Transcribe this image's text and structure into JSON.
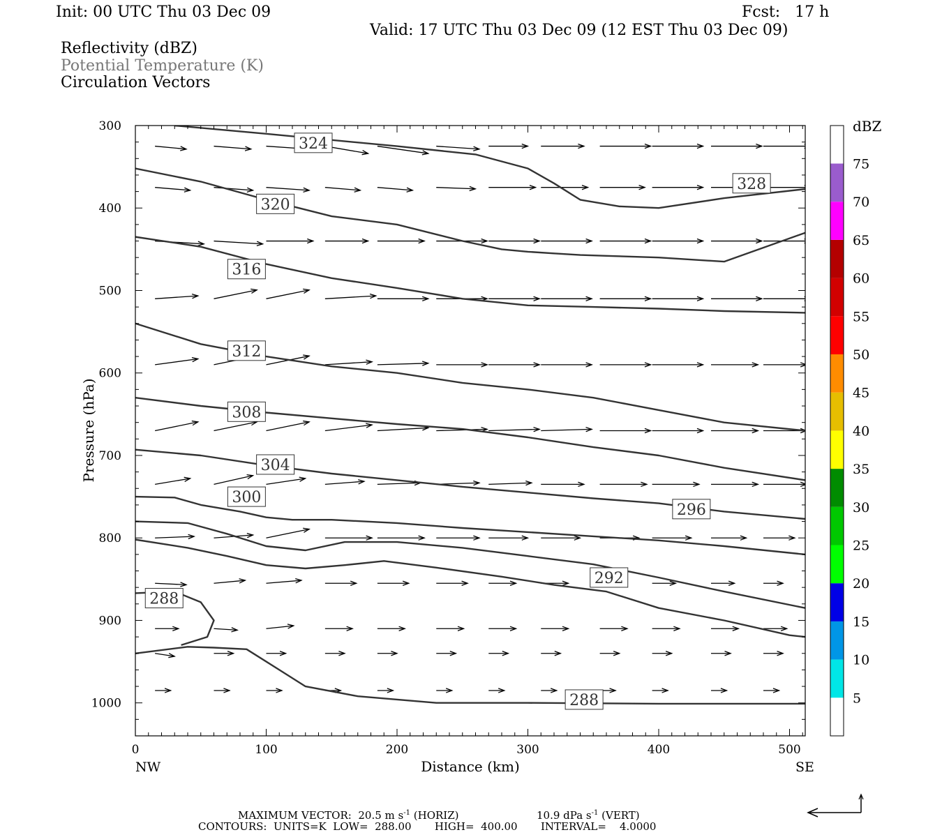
{
  "header": {
    "init": "Init: 00 UTC Thu 03 Dec 09",
    "fcst": "Fcst:   17 h",
    "valid": "Valid: 17 UTC Thu 03 Dec 09 (12 EST Thu 03 Dec 09)"
  },
  "fields": {
    "reflectivity": "Reflectivity (dBZ)",
    "theta": "Potential Temperature (K)",
    "vectors": "Circulation Vectors"
  },
  "footer": {
    "max_vector": "MAXIMUM VECTOR:  20.5 m s",
    "max_vector_units": "(HORIZ)",
    "vert": "10.9 dPa s",
    "vert_units": "(VERT)",
    "exp": "-1",
    "contours": "CONTOURS:  UNITS=K  LOW=  288.00       HIGH=  400.00       INTERVAL=    4.0000"
  },
  "chart_data": {
    "type": "line",
    "xlabel": "Distance (km)",
    "ylabel": "Pressure (hPa)",
    "xlim": [
      0,
      512
    ],
    "ylim": [
      1040,
      300
    ],
    "x_ticks": [
      "0",
      "100",
      "200",
      "300",
      "400",
      "500"
    ],
    "x_end_labels": {
      "left": "NW",
      "right": "SE"
    },
    "y_ticks": [
      "300",
      "400",
      "500",
      "600",
      "700",
      "800",
      "900",
      "1000"
    ],
    "series": [
      {
        "name": "328",
        "x": [
          30,
          100,
          200,
          260,
          300,
          320,
          340,
          370,
          400,
          450,
          512
        ],
        "y": [
          300,
          310,
          325,
          335,
          352,
          370,
          390,
          398,
          400,
          388,
          377
        ],
        "label_at": [
          471,
          370
        ]
      },
      {
        "name": "324",
        "x": [
          0,
          50,
          100,
          150,
          200,
          250,
          280,
          300,
          320,
          340,
          360,
          400,
          450,
          512
        ],
        "y": [
          352,
          368,
          390,
          410,
          420,
          440,
          450,
          453,
          455,
          457,
          458,
          460,
          465,
          430
        ],
        "label_at": [
          136,
          321
        ]
      },
      {
        "name": "320",
        "x": [
          0,
          50,
          100,
          150,
          200,
          250,
          300,
          350,
          400,
          450,
          512
        ],
        "y": [
          435,
          447,
          468,
          485,
          497,
          510,
          518,
          520,
          522,
          525,
          527
        ],
        "label_at": [
          107,
          395
        ]
      },
      {
        "name": "316",
        "x": [
          0,
          50,
          100,
          150,
          200,
          250,
          300,
          350,
          400,
          450,
          512
        ],
        "y": [
          540,
          565,
          580,
          592,
          600,
          612,
          620,
          630,
          645,
          660,
          670
        ],
        "label_at": [
          85,
          474
        ]
      },
      {
        "name": "312",
        "x": [
          0,
          50,
          100,
          150,
          200,
          250,
          300,
          350,
          400,
          450,
          512
        ],
        "y": [
          630,
          640,
          648,
          655,
          662,
          668,
          678,
          690,
          700,
          715,
          730
        ],
        "label_at": [
          85,
          573
        ]
      },
      {
        "name": "308",
        "x": [
          0,
          50,
          100,
          150,
          200,
          250,
          300,
          350,
          400,
          450,
          512
        ],
        "y": [
          693,
          700,
          712,
          722,
          730,
          738,
          745,
          752,
          758,
          768,
          777
        ],
        "label_at": [
          85,
          647
        ]
      },
      {
        "name": "304",
        "x": [
          0,
          30,
          50,
          80,
          100,
          120,
          150,
          200,
          250,
          300,
          350,
          400,
          450,
          512
        ],
        "y": [
          750,
          751,
          760,
          768,
          775,
          778,
          778,
          782,
          788,
          793,
          798,
          803,
          810,
          820
        ],
        "label_at": [
          107,
          711
        ]
      },
      {
        "name": "300",
        "x": [
          0,
          40,
          70,
          100,
          130,
          160,
          200,
          250,
          300,
          350,
          400,
          450,
          512
        ],
        "y": [
          780,
          782,
          795,
          810,
          815,
          805,
          805,
          812,
          822,
          832,
          848,
          865,
          885
        ],
        "label_at": [
          85,
          750
        ]
      },
      {
        "name": "296",
        "x": [
          0,
          40,
          70,
          100,
          130,
          160,
          190,
          230,
          280,
          320,
          360,
          400,
          450,
          500,
          512
        ],
        "y": [
          802,
          812,
          822,
          833,
          837,
          833,
          828,
          836,
          847,
          857,
          865,
          885,
          900,
          918,
          920
        ],
        "label_at": [
          425,
          765
        ]
      },
      {
        "name": "292",
        "x": [
          0,
          30,
          50,
          60,
          55,
          45,
          35
        ],
        "y": [
          867,
          865,
          878,
          900,
          920,
          925,
          930
        ],
        "label_at": [
          362,
          848
        ]
      },
      {
        "name": "288",
        "x": [
          0,
          40,
          60,
          85,
          110,
          130,
          170,
          230,
          300,
          400,
          512
        ],
        "y": [
          940,
          932,
          933,
          935,
          960,
          980,
          992,
          1000,
          1000,
          1001,
          1001
        ],
        "label_at": [
          343,
          996
        ]
      }
    ],
    "label_notes": [
      "288 also labelled near x=22, p=873"
    ],
    "colorbar": {
      "title": "dBZ",
      "levels": [
        "5",
        "10",
        "15",
        "20",
        "25",
        "30",
        "35",
        "40",
        "45",
        "50",
        "55",
        "60",
        "65",
        "70",
        "75"
      ],
      "colors": [
        "#ffffff",
        "#00e6e6",
        "#0096e6",
        "#0000e6",
        "#00ff00",
        "#00c800",
        "#008c00",
        "#ffff00",
        "#e6be00",
        "#ff8c00",
        "#ff0000",
        "#d20000",
        "#b40000",
        "#ff00ff",
        "#9a5ccd",
        "#ffffff"
      ]
    },
    "vectors": {
      "rows_p": [
        325,
        375,
        440,
        510,
        590,
        670,
        735,
        800,
        855,
        910,
        940,
        985
      ],
      "x": [
        15,
        60,
        100,
        145,
        185,
        230,
        270,
        310,
        355,
        395,
        440,
        480
      ],
      "u": [
        [
          1.6,
          1.9,
          2.2,
          2.2,
          2.6,
          2.2,
          2.0,
          2.2,
          2.6,
          2.6,
          2.6,
          2.4
        ],
        [
          1.8,
          2.0,
          2.2,
          1.8,
          1.8,
          2.0,
          2.4,
          2.4,
          2.3,
          2.6,
          2.7,
          2.4
        ],
        [
          2.5,
          2.5,
          2.4,
          2.2,
          2.4,
          2.6,
          2.6,
          2.6,
          2.6,
          2.6,
          2.6,
          2.4
        ],
        [
          2.2,
          2.2,
          2.2,
          2.6,
          2.6,
          2.6,
          2.6,
          2.6,
          2.6,
          2.6,
          2.6,
          2.4
        ],
        [
          2.2,
          2.2,
          2.2,
          2.4,
          2.6,
          2.6,
          2.6,
          2.6,
          2.6,
          2.6,
          2.4,
          2.2
        ],
        [
          2.2,
          2.2,
          2.2,
          2.4,
          2.6,
          2.6,
          2.6,
          2.6,
          2.6,
          2.6,
          2.4,
          2.2
        ],
        [
          1.8,
          2.0,
          2.0,
          2.0,
          2.2,
          2.2,
          2.2,
          2.2,
          2.4,
          2.4,
          2.4,
          2.2
        ],
        [
          2.0,
          2.0,
          2.2,
          2.4,
          2.4,
          2.2,
          2.0,
          2.0,
          2.0,
          2.0,
          1.8,
          1.6
        ],
        [
          1.6,
          1.6,
          1.8,
          1.6,
          1.6,
          1.6,
          1.4,
          1.4,
          1.2,
          1.2,
          1.2,
          1.0
        ],
        [
          1.2,
          1.2,
          1.4,
          1.4,
          1.4,
          1.4,
          1.4,
          1.4,
          1.4,
          1.4,
          1.4,
          1.2
        ],
        [
          1.0,
          1.0,
          1.0,
          1.0,
          1.0,
          1.0,
          1.0,
          1.0,
          1.0,
          1.0,
          1.0,
          1.0
        ],
        [
          0.8,
          0.8,
          0.8,
          0.8,
          0.8,
          0.8,
          0.8,
          0.8,
          0.8,
          0.8,
          0.8,
          0.8
        ]
      ],
      "w": [
        [
          0.1,
          0.1,
          0.1,
          0.25,
          0.25,
          0.1,
          0.0,
          0.0,
          0.0,
          0.0,
          0.0,
          0.0
        ],
        [
          0.1,
          0.1,
          0.1,
          0.1,
          0.1,
          0.05,
          0.0,
          0.0,
          0.0,
          0.0,
          0.0,
          0.0
        ],
        [
          0.1,
          0.1,
          0.0,
          0.0,
          0.0,
          0.0,
          0.0,
          0.0,
          0.0,
          0.0,
          0.0,
          0.0
        ],
        [
          -0.1,
          -0.3,
          -0.3,
          -0.1,
          0.0,
          0.0,
          0.0,
          0.0,
          0.0,
          0.0,
          0.0,
          0.0
        ],
        [
          -0.2,
          -0.3,
          -0.3,
          -0.1,
          -0.05,
          0.0,
          0.0,
          0.0,
          0.0,
          0.0,
          0.0,
          0.0
        ],
        [
          -0.3,
          -0.3,
          -0.3,
          -0.2,
          -0.1,
          -0.05,
          -0.05,
          -0.05,
          0.0,
          0.0,
          0.0,
          0.0
        ],
        [
          -0.2,
          -0.3,
          -0.2,
          -0.1,
          -0.05,
          -0.05,
          -0.05,
          0.0,
          0.0,
          0.0,
          0.0,
          0.0
        ],
        [
          -0.05,
          -0.1,
          -0.3,
          0.0,
          0.0,
          0.0,
          0.0,
          0.0,
          0.0,
          0.0,
          0.0,
          0.0
        ],
        [
          0.05,
          -0.1,
          -0.1,
          0.0,
          0.0,
          0.0,
          0.0,
          0.0,
          0.0,
          0.0,
          0.0,
          0.0
        ],
        [
          0.0,
          0.05,
          -0.1,
          0.0,
          0.0,
          0.0,
          0.0,
          0.0,
          0.0,
          0.0,
          0.0,
          0.0
        ],
        [
          0.1,
          0.0,
          0.0,
          0.0,
          0.0,
          0.0,
          0.0,
          0.0,
          0.0,
          0.0,
          0.0,
          0.0
        ],
        [
          0.0,
          0.0,
          0.0,
          0.0,
          0.0,
          0.0,
          0.0,
          0.0,
          0.0,
          0.0,
          0.0,
          0.0
        ]
      ]
    }
  }
}
